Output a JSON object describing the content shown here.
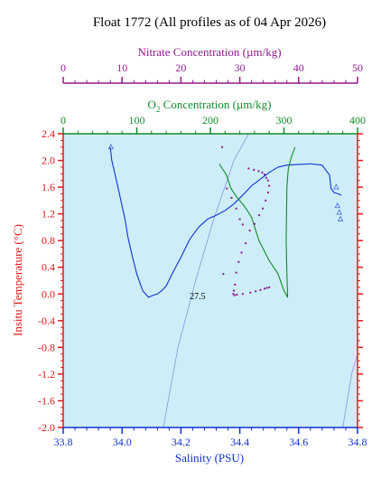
{
  "chart_data": {
    "type": "line",
    "title": "Float 1772  (All profiles as of 04 Apr 2026)",
    "colors": {
      "salinity": "#1030d0",
      "oxygen": "#138a2c",
      "nitrate": "#8e1a8e",
      "temperature": "#e01818",
      "plot_background": "#cdeef8",
      "density_contour": "#8aa0e0",
      "text": "#000000"
    },
    "axes": {
      "salinity": {
        "label": "Salinity (PSU)",
        "range": [
          33.8,
          34.8
        ],
        "ticks": [
          "33.8",
          "34.0",
          "34.2",
          "34.4",
          "34.6",
          "34.8"
        ],
        "tick_values": [
          33.8,
          34.0,
          34.2,
          34.4,
          34.6,
          34.8
        ]
      },
      "oxygen": {
        "label_main": "O",
        "label_sub": "2",
        "label_rest": " Concentration (µm/kg)",
        "range": [
          0,
          400
        ],
        "ticks": [
          "0",
          "100",
          "200",
          "300",
          "400"
        ],
        "tick_values": [
          0,
          100,
          200,
          300,
          400
        ]
      },
      "nitrate": {
        "label": "Nitrate Concentration (µm/kg)",
        "range": [
          0,
          50
        ],
        "ticks": [
          "0",
          "10",
          "20",
          "30",
          "40",
          "50"
        ],
        "tick_values": [
          0,
          10,
          20,
          30,
          40,
          50
        ]
      },
      "temperature": {
        "label": "Insitu Temperature (°C)",
        "range": [
          -2.0,
          2.4
        ],
        "ticks": [
          "2.4",
          "2.0",
          "1.6",
          "1.2",
          "0.8",
          "0.4",
          "0.0",
          "-0.4",
          "-0.8",
          "-1.2",
          "-1.6",
          "-2.0"
        ],
        "tick_values": [
          2.4,
          2.0,
          1.6,
          1.2,
          0.8,
          0.4,
          0.0,
          -0.4,
          -0.8,
          -1.2,
          -1.6,
          -2.0
        ]
      }
    },
    "density_contour": {
      "label": "27.5",
      "label_at": {
        "x": 34.23,
        "y": -0.02
      },
      "line_a": {
        "x": [
          34.14,
          34.19,
          34.25,
          34.31,
          34.38,
          34.43
        ],
        "y": [
          -2.0,
          -0.8,
          0.2,
          1.1,
          2.0,
          2.4
        ]
      },
      "line_b": {
        "x": [
          34.75,
          34.78,
          34.8
        ],
        "y": [
          -2.0,
          -1.2,
          -0.9
        ]
      }
    },
    "series": [
      {
        "name": "Salinity",
        "axis": "salinity",
        "x": [
          33.96,
          33.965,
          33.98,
          33.995,
          34.01,
          34.02,
          34.035,
          34.05,
          34.07,
          34.09,
          34.105,
          34.12,
          34.135,
          34.15,
          34.17,
          34.2,
          34.23,
          34.26,
          34.29,
          34.32,
          34.35,
          34.38,
          34.41,
          34.44,
          34.47,
          34.5,
          34.53,
          34.56,
          34.6,
          34.64,
          34.68,
          34.705,
          34.71,
          34.72,
          34.735,
          34.745
        ],
        "y": [
          2.2,
          2.0,
          1.72,
          1.42,
          1.12,
          0.85,
          0.56,
          0.3,
          0.05,
          -0.05,
          -0.02,
          0.0,
          0.05,
          0.12,
          0.3,
          0.55,
          0.82,
          1.0,
          1.12,
          1.18,
          1.25,
          1.35,
          1.48,
          1.62,
          1.72,
          1.82,
          1.9,
          1.93,
          1.94,
          1.95,
          1.93,
          1.78,
          1.58,
          1.52,
          1.5,
          1.48
        ]
      },
      {
        "name": "Oxygen",
        "axis": "oxygen",
        "x": [
          212,
          222,
          228,
          236,
          246,
          256,
          266,
          280,
          292,
          300,
          305,
          304,
          303,
          303.5,
          304,
          305,
          306,
          310,
          315
        ],
        "y": [
          1.95,
          1.78,
          1.58,
          1.45,
          1.32,
          1.15,
          0.8,
          0.5,
          0.3,
          0.05,
          -0.05,
          0.3,
          0.8,
          1.2,
          1.6,
          1.75,
          1.88,
          2.05,
          2.2
        ]
      },
      {
        "name": "Nitrate",
        "axis": "nitrate",
        "marker": "dots",
        "x": [
          27,
          27.2,
          27.8,
          28.6,
          29.4,
          30.0,
          30.5,
          31.5,
          32.4,
          33.2,
          33.8,
          34.2,
          34.5,
          34.8,
          35.0,
          34.8,
          34.4,
          33.9,
          33.3,
          32.5,
          31.7,
          31.0,
          30.3,
          29.8,
          29.4,
          29.2,
          29.0,
          28.9,
          29.1,
          29.5,
          30.5,
          31.8,
          32.7,
          33.5,
          34.2,
          34.6,
          35.0
        ],
        "y": [
          2.2,
          0.3,
          1.58,
          1.44,
          1.28,
          1.12,
          1.04,
          1.88,
          1.86,
          1.84,
          1.82,
          1.79,
          1.74,
          1.7,
          1.62,
          1.52,
          1.4,
          1.28,
          1.18,
          1.05,
          0.95,
          0.76,
          0.62,
          0.48,
          0.32,
          0.14,
          0.05,
          0.0,
          -0.02,
          -0.01,
          0.0,
          0.02,
          0.04,
          0.06,
          0.08,
          0.09,
          0.1
        ]
      },
      {
        "name": "Salinity triangles",
        "axis": "salinity",
        "marker": "triangles",
        "x": [
          33.962,
          34.728,
          34.732,
          34.738,
          34.742
        ],
        "y": [
          2.2,
          1.6,
          1.32,
          1.22,
          1.12
        ]
      }
    ]
  }
}
